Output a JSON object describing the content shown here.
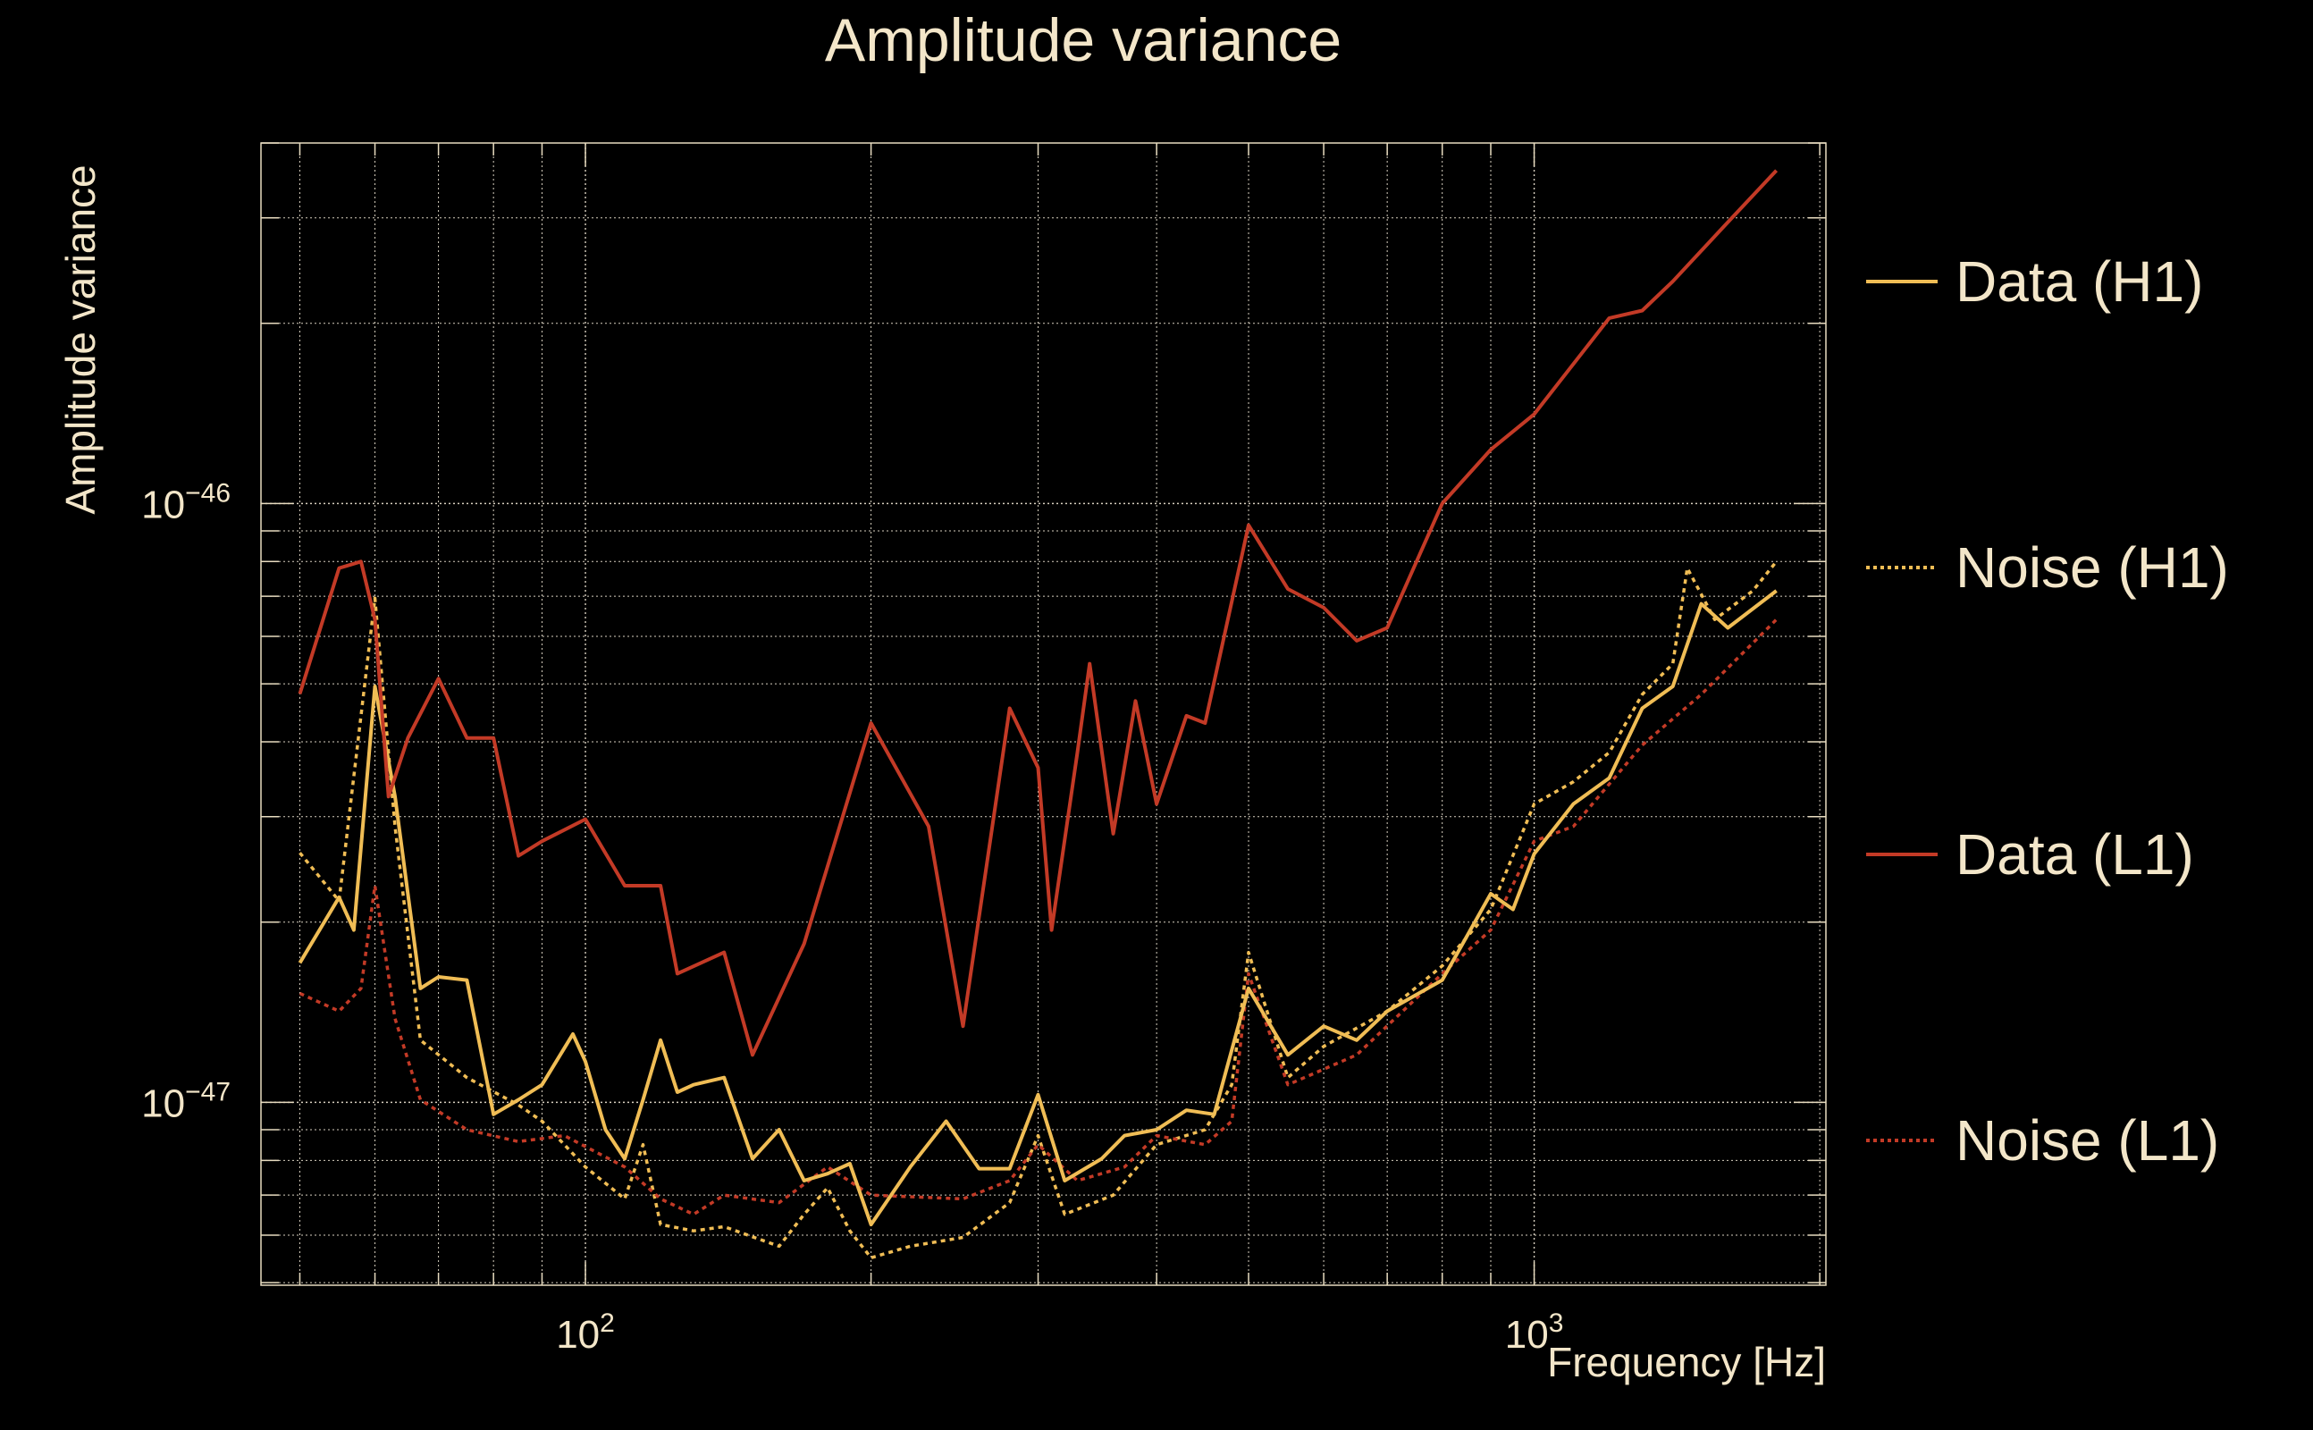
{
  "chart_data": {
    "type": "line",
    "title": "Amplitude variance",
    "xlabel": "Frequency [Hz]",
    "ylabel": "Amplitude variance",
    "xscale": "log",
    "yscale": "log",
    "xlim": [
      45.5,
      2030
    ],
    "ylim": [
      4.95e-48,
      4e-46
    ],
    "grid": true,
    "legend_placement": "right-outside",
    "x_ticks": [
      {
        "value": 100,
        "base": "10",
        "exp": "2"
      },
      {
        "value": 1000,
        "base": "10",
        "exp": "3"
      }
    ],
    "y_ticks": [
      {
        "value": 1e-46,
        "base": "10",
        "exp": "−46"
      },
      {
        "value": 1e-47,
        "base": "10",
        "exp": "−47"
      }
    ],
    "series": [
      {
        "name": "Data (H1)",
        "color": "#f0bd55",
        "style": "solid",
        "x": [
          50,
          55,
          57,
          60,
          63,
          67,
          70,
          75,
          80,
          85,
          90,
          97,
          100,
          105,
          110,
          115,
          120,
          125,
          130,
          140,
          150,
          160,
          170,
          180,
          190,
          200,
          220,
          240,
          260,
          280,
          300,
          320,
          350,
          370,
          400,
          430,
          460,
          500,
          550,
          600,
          650,
          700,
          800,
          900,
          950,
          1000,
          1100,
          1200,
          1300,
          1400,
          1500,
          1600,
          1800
        ],
        "y": [
          1.71e-47,
          2.2e-47,
          1.94e-47,
          4.95e-47,
          3.24e-47,
          1.55e-47,
          1.62e-47,
          1.6e-47,
          9.55e-48,
          1.01e-47,
          1.07e-47,
          1.3e-47,
          1.17e-47,
          9e-48,
          8.05e-48,
          1.01e-47,
          1.27e-47,
          1.04e-47,
          1.07e-47,
          1.1e-47,
          8.05e-48,
          9e-48,
          7.4e-48,
          7.6e-48,
          7.9e-48,
          6.25e-48,
          7.8e-48,
          9.3e-48,
          7.75e-48,
          7.75e-48,
          1.03e-47,
          7.4e-48,
          8.05e-48,
          8.8e-48,
          9e-48,
          9.7e-48,
          9.55e-48,
          1.55e-47,
          1.2e-47,
          1.34e-47,
          1.27e-47,
          1.42e-47,
          1.6e-47,
          2.23e-47,
          2.1e-47,
          2.6e-47,
          3.15e-47,
          3.48e-47,
          4.55e-47,
          4.95e-47,
          6.8e-47,
          6.2e-47,
          7.15e-47
        ]
      },
      {
        "name": "Noise (H1)",
        "color": "#f0bd55",
        "style": "dotted",
        "x": [
          50,
          55,
          60,
          63,
          67,
          75,
          85,
          90,
          95,
          100,
          110,
          115,
          120,
          130,
          140,
          160,
          170,
          180,
          190,
          200,
          220,
          250,
          280,
          300,
          320,
          360,
          400,
          450,
          480,
          500,
          550,
          600,
          700,
          800,
          900,
          1000,
          1100,
          1200,
          1300,
          1400,
          1450,
          1550,
          1700,
          1800
        ],
        "y": [
          2.61e-47,
          2.17e-47,
          6.95e-47,
          2.89e-47,
          1.27e-47,
          1.1e-47,
          9.9e-48,
          9.3e-48,
          8.5e-48,
          7.8e-48,
          6.9e-48,
          8.5e-48,
          6.25e-48,
          6.1e-48,
          6.2e-48,
          5.75e-48,
          6.5e-48,
          7.2e-48,
          6.1e-48,
          5.5e-48,
          5.75e-48,
          5.95e-48,
          6.8e-48,
          8.8e-48,
          6.5e-48,
          7e-48,
          8.5e-48,
          9e-48,
          1.07e-47,
          1.78e-47,
          1.1e-47,
          1.24e-47,
          1.42e-47,
          1.69e-47,
          2.1e-47,
          3.15e-47,
          3.43e-47,
          3.84e-47,
          4.8e-47,
          5.4e-47,
          7.8e-47,
          6.4e-47,
          7.15e-47,
          8e-47
        ]
      },
      {
        "name": "Data (L1)",
        "color": "#c33a26",
        "style": "solid",
        "x": [
          50,
          55,
          58,
          60,
          62,
          65,
          70,
          75,
          80,
          85,
          90,
          100,
          110,
          120,
          125,
          140,
          150,
          170,
          200,
          230,
          250,
          280,
          300,
          310,
          330,
          340,
          360,
          380,
          400,
          430,
          450,
          500,
          550,
          600,
          650,
          700,
          800,
          900,
          1000,
          1200,
          1300,
          1400,
          1600,
          1800
        ],
        "y": [
          4.81e-47,
          7.8e-47,
          8e-47,
          6.4e-47,
          3.24e-47,
          4.06e-47,
          5.1e-47,
          4.06e-47,
          4.06e-47,
          2.58e-47,
          2.73e-47,
          2.97e-47,
          2.3e-47,
          2.3e-47,
          1.64e-47,
          1.78e-47,
          1.2e-47,
          1.84e-47,
          4.3e-47,
          2.89e-47,
          1.34e-47,
          4.55e-47,
          3.62e-47,
          1.94e-47,
          3.84e-47,
          5.4e-47,
          2.81e-47,
          4.68e-47,
          3.15e-47,
          4.42e-47,
          4.3e-47,
          9.2e-47,
          7.2e-47,
          6.7e-47,
          5.9e-47,
          6.2e-47,
          1e-46,
          1.23e-46,
          1.41e-46,
          2.04e-46,
          2.1e-46,
          2.35e-46,
          2.95e-46,
          3.6e-46
        ]
      },
      {
        "name": "Noise (L1)",
        "color": "#c33a26",
        "style": "dotted",
        "x": [
          50,
          55,
          58,
          60,
          63,
          67,
          75,
          85,
          95,
          110,
          120,
          130,
          140,
          160,
          180,
          200,
          250,
          280,
          300,
          330,
          370,
          400,
          450,
          480,
          500,
          550,
          650,
          800,
          900,
          1000,
          1100,
          1300,
          1500,
          1800
        ],
        "y": [
          1.52e-47,
          1.42e-47,
          1.55e-47,
          2.3e-47,
          1.38e-47,
          1.01e-47,
          9e-48,
          8.6e-48,
          8.8e-48,
          7.8e-48,
          6.9e-48,
          6.5e-48,
          7e-48,
          6.8e-48,
          7.8e-48,
          7e-48,
          6.9e-48,
          7.4e-48,
          8.5e-48,
          7.4e-48,
          7.8e-48,
          8.8e-48,
          8.5e-48,
          9.3e-48,
          1.64e-47,
          1.07e-47,
          1.2e-47,
          1.64e-47,
          1.94e-47,
          2.73e-47,
          2.89e-47,
          3.95e-47,
          4.8e-47,
          6.4e-47
        ]
      }
    ]
  }
}
